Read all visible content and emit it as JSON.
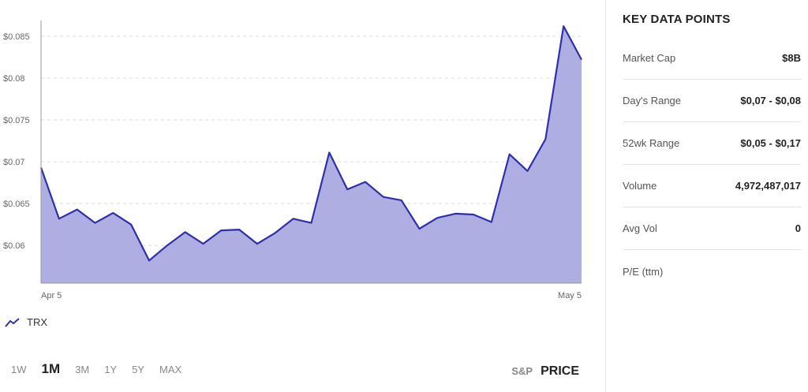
{
  "chart_data": {
    "type": "area",
    "x_tick_labels": [
      "Apr 5",
      "May 5"
    ],
    "y_tick_labels": [
      "$0.085",
      "$0.08",
      "$0.075",
      "$0.07",
      "$0.065",
      "$0.06"
    ],
    "y_ticks": [
      0.085,
      0.08,
      0.075,
      0.07,
      0.065,
      0.06
    ],
    "ylim": [
      0.0555,
      0.0865
    ],
    "grid": true,
    "series": [
      {
        "name": "TRX",
        "color": "#2f2fa8",
        "fill": "#aeaee3",
        "values": [
          0.0693,
          0.0632,
          0.0643,
          0.0627,
          0.0639,
          0.0625,
          0.0582,
          0.06,
          0.0616,
          0.0602,
          0.0618,
          0.0619,
          0.0602,
          0.0615,
          0.0632,
          0.0627,
          0.0711,
          0.0667,
          0.0676,
          0.0658,
          0.0654,
          0.062,
          0.0633,
          0.0638,
          0.0637,
          0.0628,
          0.0709,
          0.0689,
          0.0727,
          0.0862,
          0.0822
        ]
      }
    ]
  },
  "legend": {
    "label": "TRX"
  },
  "range_buttons": [
    "1W",
    "1M",
    "3M",
    "1Y",
    "5Y",
    "MAX"
  ],
  "active_range": "1M",
  "modes": {
    "sp": "S&P",
    "price": "PRICE"
  },
  "key_data": {
    "title": "KEY DATA POINTS",
    "rows": [
      {
        "label": "Market Cap",
        "value": "$8B"
      },
      {
        "label": "Day's Range",
        "value": "$0,07 - $0,08"
      },
      {
        "label": "52wk Range",
        "value": "$0,05 - $0,17"
      },
      {
        "label": "Volume",
        "value": "4,972,487,017"
      },
      {
        "label": "Avg Vol",
        "value": "0"
      },
      {
        "label": "P/E (ttm)",
        "value": ""
      }
    ]
  }
}
